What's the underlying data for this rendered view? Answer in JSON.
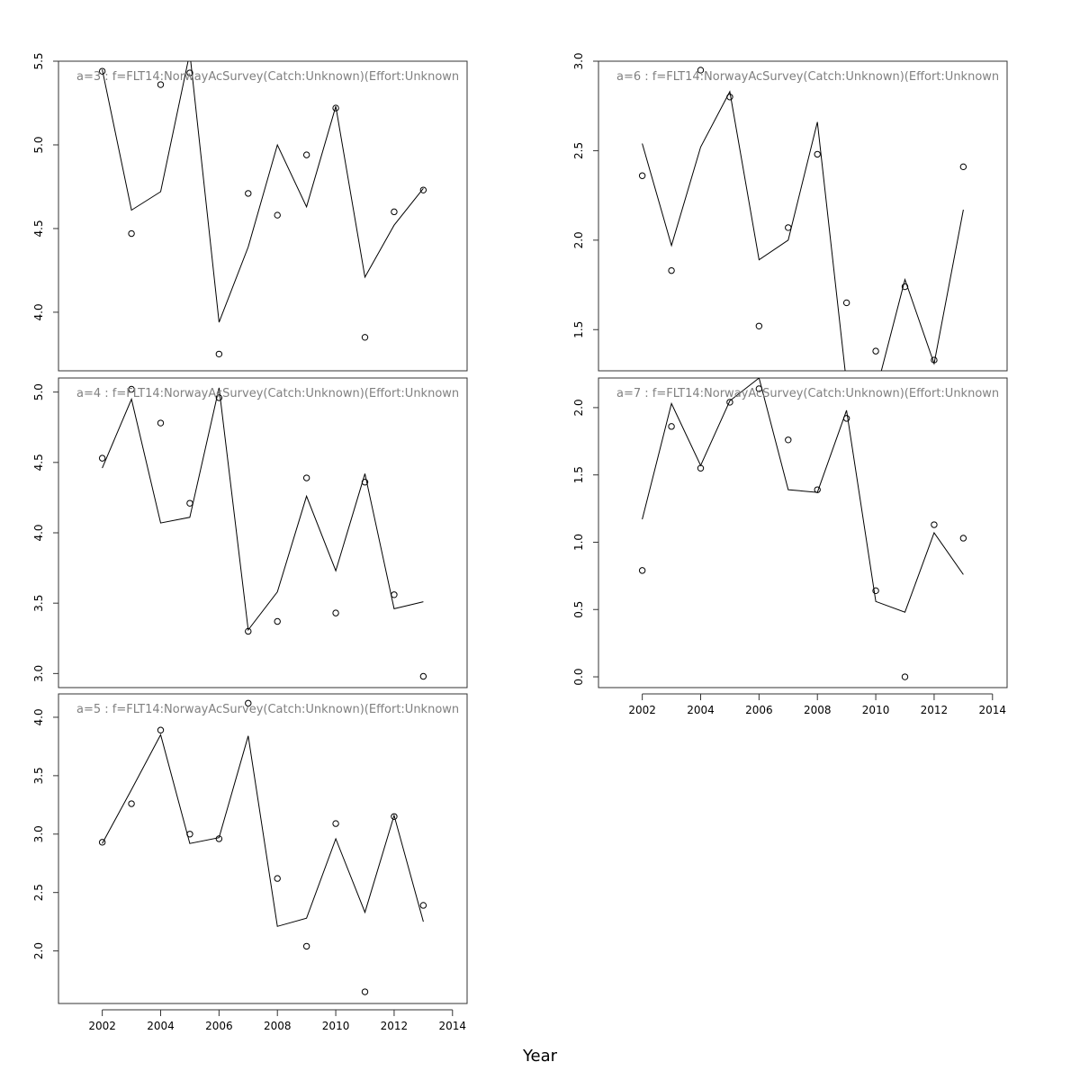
{
  "chart_data": {
    "type": "line",
    "xlabel": "Year",
    "x_ticks": [
      2002,
      2004,
      2006,
      2008,
      2010,
      2012,
      2014
    ],
    "x_range": [
      2000.5,
      2014.5
    ],
    "years": [
      2002,
      2003,
      2004,
      2005,
      2006,
      2007,
      2008,
      2009,
      2010,
      2011,
      2012,
      2013
    ],
    "series_style": {
      "fitted": "line",
      "observed": "open circle",
      "color": "#000000",
      "title_color": "#808080"
    },
    "panels": [
      {
        "title": "a=3  :  f=FLT14:NorwayAcSurvey(Catch:Unknown)(Effort:Unknown",
        "ylim": [
          3.65,
          5.5
        ],
        "y_ticks": [
          4.0,
          4.5,
          5.0,
          5.5
        ],
        "y_tick_labels": [
          "4.0",
          "4.5",
          "5.0",
          "5.5"
        ],
        "fitted": [
          5.45,
          4.61,
          4.72,
          5.55,
          3.94,
          4.39,
          5.0,
          4.63,
          5.23,
          4.21,
          4.52,
          4.74
        ],
        "observed": [
          5.44,
          4.47,
          5.36,
          5.43,
          3.75,
          4.71,
          4.58,
          4.94,
          5.22,
          3.85,
          4.6,
          4.73
        ]
      },
      {
        "title": "a=4  :  f=FLT14:NorwayAcSurvey(Catch:Unknown)(Effort:Unknown",
        "ylim": [
          2.9,
          5.1
        ],
        "y_ticks": [
          3.0,
          3.5,
          4.0,
          4.5,
          5.0
        ],
        "y_tick_labels": [
          "3.0",
          "3.5",
          "4.0",
          "4.5",
          "5.0"
        ],
        "fitted": [
          4.46,
          4.95,
          4.07,
          4.11,
          5.03,
          3.31,
          3.58,
          4.26,
          3.73,
          4.42,
          3.46,
          3.51
        ],
        "observed": [
          4.53,
          5.02,
          4.78,
          4.21,
          4.96,
          3.3,
          3.37,
          4.39,
          3.43,
          4.36,
          3.56,
          2.98
        ]
      },
      {
        "title": "a=5  :  f=FLT14:NorwayAcSurvey(Catch:Unknown)(Effort:Unknown",
        "ylim": [
          1.55,
          4.2
        ],
        "y_ticks": [
          2.0,
          2.5,
          3.0,
          3.5,
          4.0
        ],
        "y_tick_labels": [
          "2.0",
          "2.5",
          "3.0",
          "3.5",
          "4.0"
        ],
        "fitted": [
          2.92,
          3.38,
          3.85,
          2.92,
          2.97,
          3.84,
          2.21,
          2.28,
          2.96,
          2.33,
          3.16,
          2.25
        ],
        "observed": [
          2.93,
          3.26,
          3.89,
          3.0,
          2.96,
          4.12,
          2.62,
          2.04,
          3.09,
          1.65,
          3.15,
          2.39
        ]
      },
      {
        "title": "a=6  :  f=FLT14:NorwayAcSurvey(Catch:Unknown)(Effort:Unknown",
        "ylim": [
          1.27,
          3.0
        ],
        "y_ticks": [
          1.5,
          2.0,
          2.5,
          3.0
        ],
        "y_tick_labels": [
          "1.5",
          "2.0",
          "2.5",
          "3.0"
        ],
        "fitted": [
          2.54,
          1.97,
          2.52,
          2.83,
          1.89,
          2.0,
          2.66,
          1.2,
          1.15,
          1.78,
          1.31,
          2.17
        ],
        "observed": [
          2.36,
          1.83,
          2.95,
          2.8,
          1.52,
          2.07,
          2.48,
          1.65,
          1.38,
          1.74,
          1.33,
          2.41
        ]
      },
      {
        "title": "a=7  :  f=FLT14:NorwayAcSurvey(Catch:Unknown)(Effort:Unknown",
        "ylim": [
          -0.08,
          2.22
        ],
        "y_ticks": [
          0.0,
          0.5,
          1.0,
          1.5,
          2.0
        ],
        "y_tick_labels": [
          "0.0",
          "0.5",
          "1.0",
          "1.5",
          "2.0"
        ],
        "fitted": [
          1.17,
          2.03,
          1.57,
          2.05,
          2.22,
          1.39,
          1.37,
          1.98,
          0.56,
          0.48,
          1.07,
          0.76
        ],
        "observed": [
          0.79,
          1.86,
          1.55,
          2.04,
          2.14,
          1.76,
          1.39,
          1.92,
          0.64,
          0.0,
          1.13,
          1.03
        ]
      }
    ]
  }
}
